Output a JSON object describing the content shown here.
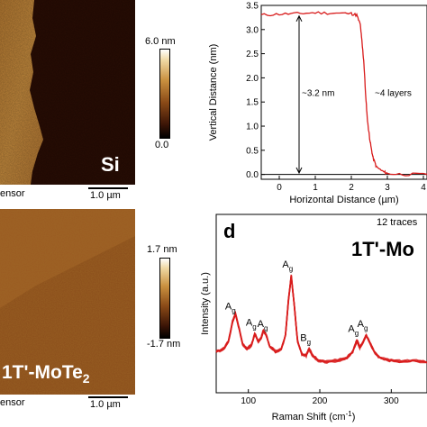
{
  "panel_top_afm": {
    "sample_label": "Si",
    "scale_bar_label": "1.0 µm",
    "sensor_label": "ensor",
    "colorbar_max": "6.0 nm",
    "colorbar_min": "0.0"
  },
  "panel_bottom_afm": {
    "sample_label_main": "1T'-MoTe",
    "sample_label_sub": "2",
    "scale_bar_label": "1.0 µm",
    "sensor_label": "ensor",
    "colorbar_max": "1.7 nm",
    "colorbar_min": "-1.7 nm"
  },
  "colors": {
    "trace_red": "#d81b1b",
    "afm_dark": "#2a0d04",
    "afm_bright": "#c88a3c"
  },
  "chart_data": [
    {
      "type": "line",
      "xlabel": "Horizontal Distance (µm)",
      "ylabel": "Vertical Distance (nm)",
      "xlim": [
        -0.5,
        4.1
      ],
      "ylim": [
        -0.1,
        3.5
      ],
      "x_ticks": [
        "0",
        "1",
        "2",
        "3",
        "4"
      ],
      "y_ticks": [
        "0.0",
        "0.5",
        "1.0",
        "1.5",
        "2.0",
        "2.5",
        "3.0",
        "3.5"
      ],
      "annotations": {
        "height": "~3.2 nm",
        "layers": "~4 layers"
      },
      "series": [
        {
          "x": [
            -0.5,
            0,
            0.5,
            1.0,
            1.5,
            2.0,
            2.15,
            2.25,
            2.3,
            2.35,
            2.4,
            2.45,
            2.5,
            2.55,
            2.6,
            2.7,
            2.9,
            3.0,
            3.5,
            4.1
          ],
          "values": [
            3.3,
            3.32,
            3.33,
            3.35,
            3.34,
            3.33,
            3.3,
            3.1,
            2.7,
            2.3,
            1.6,
            1.1,
            0.8,
            0.55,
            0.35,
            0.15,
            0.05,
            0.02,
            0.0,
            0.0
          ]
        }
      ]
    },
    {
      "type": "line",
      "panel_letter": "d",
      "legend_text": "12 traces",
      "sample_label": "1T'-Mo",
      "xlabel": "Raman Shift (cm",
      "xlabel_sup": "-1",
      "xlabel_end": ")",
      "ylabel": "Intensity (a.u.)",
      "xlim": [
        55,
        350
      ],
      "x_ticks": [
        "100",
        "200",
        "300"
      ],
      "peak_labels": [
        {
          "x": 80,
          "main": "A",
          "sub": "g"
        },
        {
          "x": 109,
          "main": "A",
          "sub": "g"
        },
        {
          "x": 125,
          "main": "A",
          "sub": "g"
        },
        {
          "x": 160,
          "main": "A",
          "sub": "g"
        },
        {
          "x": 185,
          "main": "B",
          "sub": "g"
        },
        {
          "x": 252,
          "main": "A",
          "sub": "g"
        },
        {
          "x": 265,
          "main": "A",
          "sub": "g"
        }
      ],
      "series": [
        {
          "x": [
            55,
            65,
            72,
            78,
            82,
            86,
            92,
            98,
            104,
            109,
            114,
            118,
            121,
            125,
            130,
            138,
            146,
            152,
            156,
            160,
            164,
            169,
            175,
            181,
            185,
            190,
            198,
            210,
            225,
            238,
            246,
            250,
            252,
            256,
            261,
            265,
            270,
            276,
            282,
            290,
            300,
            315,
            330,
            350
          ],
          "values": [
            0.12,
            0.14,
            0.2,
            0.36,
            0.42,
            0.33,
            0.18,
            0.14,
            0.17,
            0.26,
            0.2,
            0.23,
            0.29,
            0.25,
            0.16,
            0.12,
            0.14,
            0.25,
            0.52,
            0.72,
            0.5,
            0.2,
            0.1,
            0.09,
            0.14,
            0.09,
            0.05,
            0.04,
            0.05,
            0.07,
            0.12,
            0.18,
            0.21,
            0.15,
            0.2,
            0.25,
            0.19,
            0.12,
            0.08,
            0.06,
            0.05,
            0.04,
            0.05,
            0.04
          ]
        }
      ]
    }
  ]
}
